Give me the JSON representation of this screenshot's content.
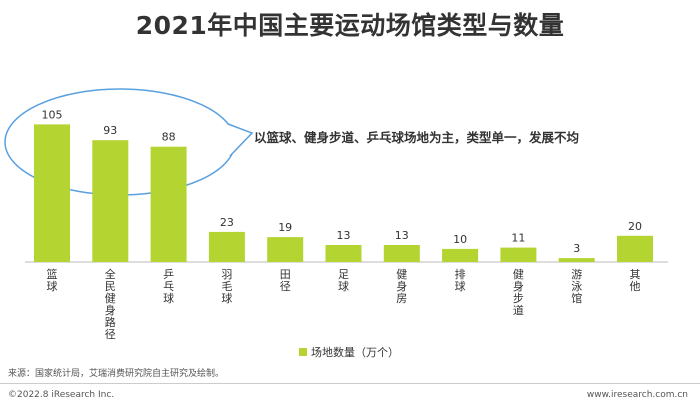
{
  "chart_data": {
    "type": "bar",
    "title": "2021年中国主要运动场馆类型与数量",
    "categories": [
      "篮球",
      "全民健身路径",
      "乒乓球",
      "羽毛球",
      "田径",
      "足球",
      "健身房",
      "排球",
      "健身步道",
      "游泳馆",
      "其他"
    ],
    "series": [
      {
        "name": "场地数量（万个）",
        "values": [
          105,
          93,
          88,
          23,
          19,
          13,
          13,
          10,
          11,
          3,
          20
        ]
      }
    ],
    "ylim": [
      0,
      120
    ],
    "grid": false,
    "legend_position": "bottom",
    "annotation": "以篮球、健身步道、乒乓球场地为主，类型单一，发展不均"
  },
  "colors": {
    "bar": "#b4d432",
    "callout": "#5aa0e0",
    "axis": "#bbbbbb"
  },
  "source": "来源：国家统计局，艾瑞消费研究院自主研究及绘制。",
  "footer": {
    "copyright": "©2022.8 iResearch Inc.",
    "website": "www.iresearch.com.cn"
  }
}
